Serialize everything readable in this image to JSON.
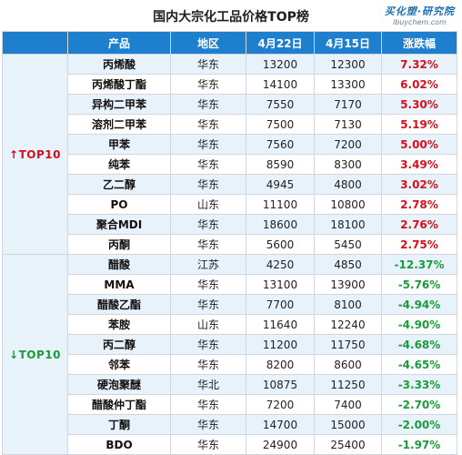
{
  "title": "国内大宗化工品价格TOP榜",
  "logo": {
    "main": "买化塑·研究院",
    "sub": "ibuychem.com"
  },
  "columns": [
    "",
    "产品",
    "地区",
    "4月22日",
    "4月15日",
    "涨跌幅"
  ],
  "colors": {
    "header_bg": "#1e7fcf",
    "rise": "#d60f1c",
    "fall": "#1d9a3c",
    "zebra": "#e8f2fb"
  },
  "chart_data": {
    "type": "table",
    "title": "国内大宗化工品价格TOP榜",
    "groups": [
      {
        "label": "↑TOP10",
        "direction": "up",
        "rows": [
          {
            "product": "丙烯酸",
            "region": "华东",
            "apr22": "13200",
            "apr15": "12300",
            "change": "7.32%"
          },
          {
            "product": "丙烯酸丁酯",
            "region": "华东",
            "apr22": "14100",
            "apr15": "13300",
            "change": "6.02%"
          },
          {
            "product": "异构二甲苯",
            "region": "华东",
            "apr22": "7550",
            "apr15": "7170",
            "change": "5.30%"
          },
          {
            "product": "溶剂二甲苯",
            "region": "华东",
            "apr22": "7500",
            "apr15": "7130",
            "change": "5.19%"
          },
          {
            "product": "甲苯",
            "region": "华东",
            "apr22": "7560",
            "apr15": "7200",
            "change": "5.00%"
          },
          {
            "product": "纯苯",
            "region": "华东",
            "apr22": "8590",
            "apr15": "8300",
            "change": "3.49%"
          },
          {
            "product": "乙二醇",
            "region": "华东",
            "apr22": "4945",
            "apr15": "4800",
            "change": "3.02%"
          },
          {
            "product": "PO",
            "region": "山东",
            "apr22": "11100",
            "apr15": "10800",
            "change": "2.78%"
          },
          {
            "product": "聚合MDI",
            "region": "华东",
            "apr22": "18600",
            "apr15": "18100",
            "change": "2.76%"
          },
          {
            "product": "丙酮",
            "region": "华东",
            "apr22": "5600",
            "apr15": "5450",
            "change": "2.75%"
          }
        ]
      },
      {
        "label": "↓TOP10",
        "direction": "down",
        "rows": [
          {
            "product": "醋酸",
            "region": "江苏",
            "apr22": "4250",
            "apr15": "4850",
            "change": "-12.37%"
          },
          {
            "product": "MMA",
            "region": "华东",
            "apr22": "13100",
            "apr15": "13900",
            "change": "-5.76%"
          },
          {
            "product": "醋酸乙酯",
            "region": "华东",
            "apr22": "7700",
            "apr15": "8100",
            "change": "-4.94%"
          },
          {
            "product": "苯胺",
            "region": "山东",
            "apr22": "11640",
            "apr15": "12240",
            "change": "-4.90%"
          },
          {
            "product": "丙二醇",
            "region": "华东",
            "apr22": "11200",
            "apr15": "11750",
            "change": "-4.68%"
          },
          {
            "product": "邻苯",
            "region": "华东",
            "apr22": "8200",
            "apr15": "8600",
            "change": "-4.65%"
          },
          {
            "product": "硬泡聚醚",
            "region": "华北",
            "apr22": "10875",
            "apr15": "11250",
            "change": "-3.33%"
          },
          {
            "product": "醋酸仲丁酯",
            "region": "华东",
            "apr22": "7200",
            "apr15": "7400",
            "change": "-2.70%"
          },
          {
            "product": "丁酮",
            "region": "华东",
            "apr22": "14700",
            "apr15": "15000",
            "change": "-2.00%"
          },
          {
            "product": "BDO",
            "region": "华东",
            "apr22": "24900",
            "apr15": "25400",
            "change": "-1.97%"
          }
        ]
      }
    ]
  }
}
